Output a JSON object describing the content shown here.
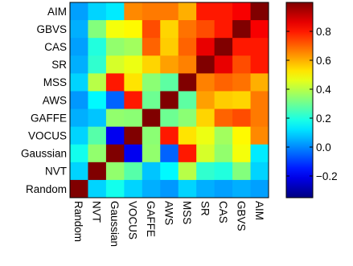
{
  "chart_data": {
    "type": "heatmap",
    "rows": [
      "AIM",
      "GBVS",
      "CAS",
      "SR",
      "MSS",
      "AWS",
      "GAFFE",
      "VOCUS",
      "Gaussian",
      "NVT",
      "Random"
    ],
    "columns": [
      "Random",
      "NVT",
      "Gaussian",
      "VOCUS",
      "GAFFE",
      "AWS",
      "MSS",
      "SR",
      "CAS",
      "GBVS",
      "AIM"
    ],
    "values": [
      [
        0.03,
        0.1,
        0.13,
        0.65,
        0.67,
        0.67,
        0.6,
        0.8,
        0.8,
        0.84,
        1.0
      ],
      [
        0.05,
        0.33,
        0.48,
        0.5,
        0.73,
        0.55,
        0.68,
        0.73,
        0.8,
        1.0,
        0.84
      ],
      [
        0.03,
        0.2,
        0.35,
        0.37,
        0.7,
        0.56,
        0.7,
        0.86,
        1.0,
        0.8,
        0.8
      ],
      [
        0.05,
        0.22,
        0.44,
        0.47,
        0.55,
        0.62,
        0.66,
        1.0,
        0.86,
        0.73,
        0.8
      ],
      [
        0.1,
        0.4,
        0.8,
        0.53,
        0.34,
        0.28,
        1.0,
        0.66,
        0.7,
        0.68,
        0.6
      ],
      [
        0.02,
        0.15,
        -0.05,
        0.8,
        0.3,
        1.0,
        0.28,
        0.62,
        0.56,
        0.55,
        0.67
      ],
      [
        0.05,
        0.08,
        0.35,
        0.34,
        1.0,
        0.3,
        0.34,
        0.55,
        0.7,
        0.73,
        0.67
      ],
      [
        0.1,
        0.27,
        -0.2,
        1.0,
        0.34,
        0.8,
        0.53,
        0.47,
        0.37,
        0.5,
        0.65
      ],
      [
        0.18,
        0.35,
        1.0,
        -0.2,
        0.35,
        -0.05,
        0.8,
        0.44,
        0.35,
        0.48,
        0.13
      ],
      [
        0.1,
        1.0,
        0.35,
        0.27,
        0.08,
        0.15,
        0.4,
        0.22,
        0.2,
        0.33,
        0.1
      ],
      [
        1.0,
        0.1,
        0.18,
        0.1,
        0.05,
        0.02,
        0.1,
        0.05,
        0.03,
        0.05,
        0.03
      ]
    ],
    "colorbar": {
      "ticks": [
        0.8,
        0.6,
        0.4,
        0.2,
        0.0,
        -0.2
      ],
      "tick_labels": [
        "0.8",
        "0.6",
        "0.4",
        "0.2",
        "0.0",
        "−0.2"
      ],
      "range": [
        -0.35,
        1.0
      ],
      "colormap": "jet"
    },
    "title": "",
    "xlabel": "",
    "ylabel": ""
  }
}
